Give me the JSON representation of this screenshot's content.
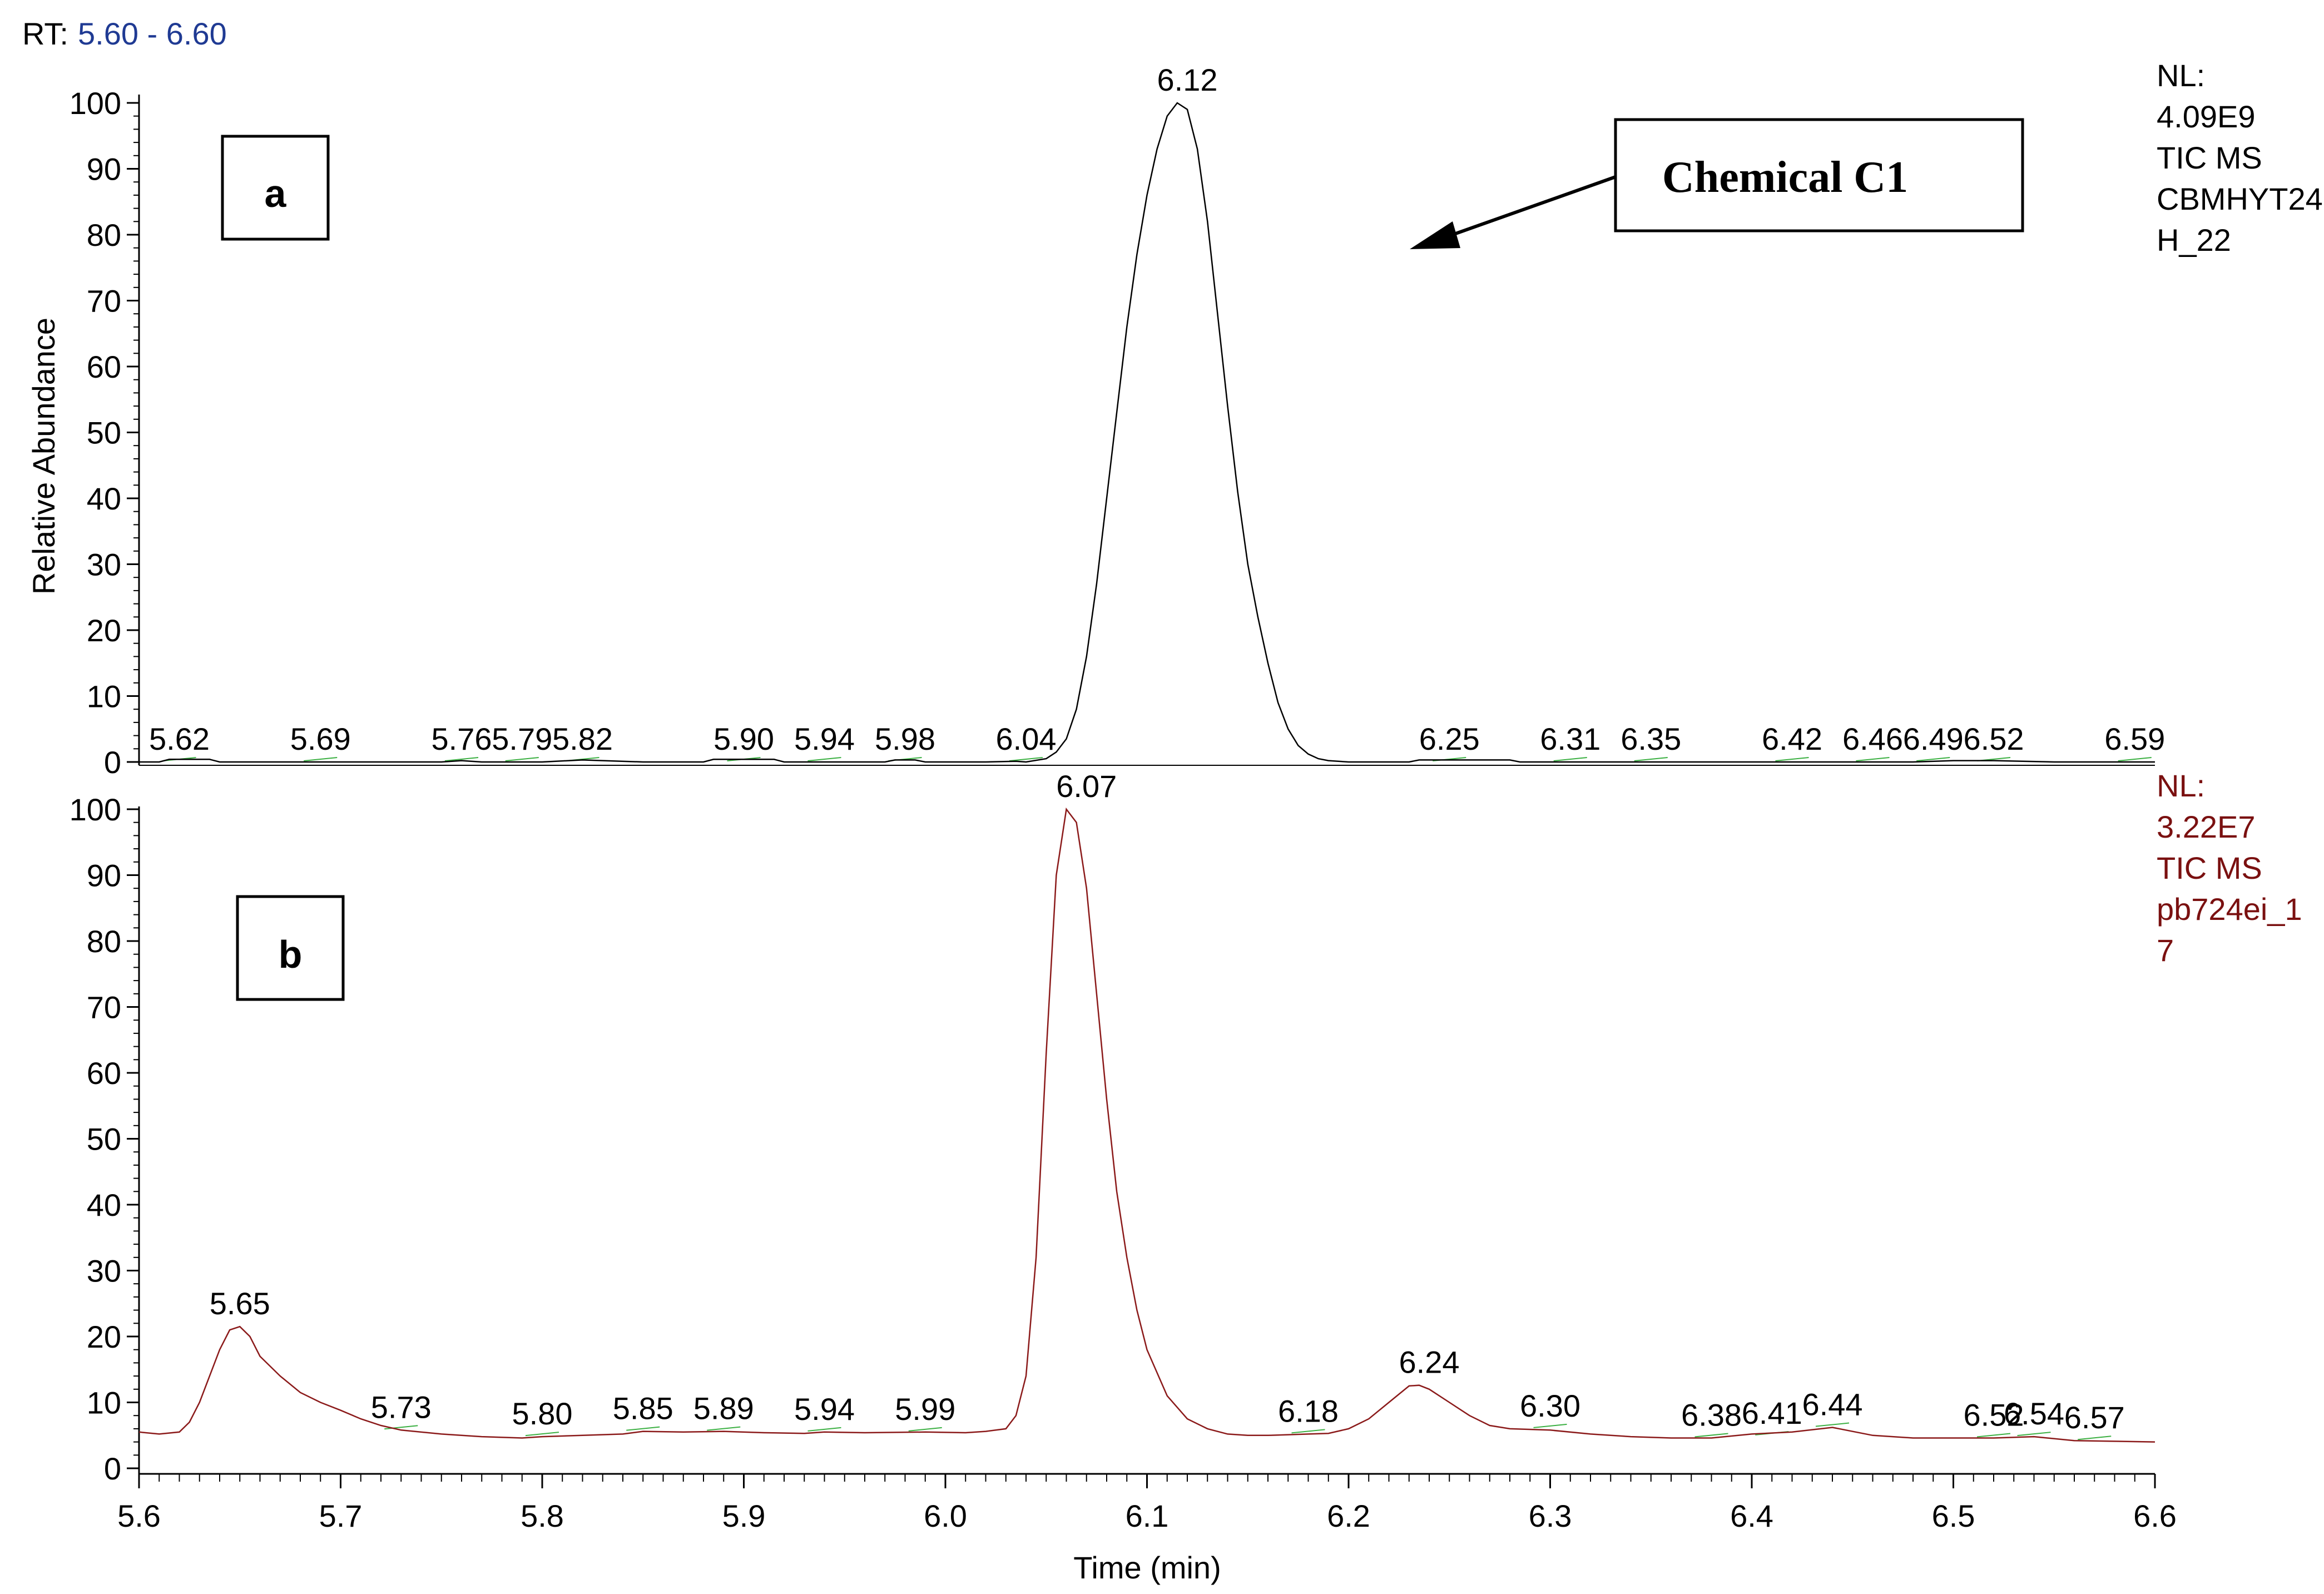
{
  "header": {
    "rt_label": "RT:",
    "rt_range": "5.60 - 6.60"
  },
  "annotation": {
    "label": "Chemical C1"
  },
  "colors": {
    "panel_a_trace": "#000000",
    "panel_b_trace": "#8b1a1a",
    "panel_b_info": "#7a1010",
    "rt_range": "#1f3a93",
    "minor_peak_marker": "#3cb043"
  },
  "chart_data": [
    {
      "type": "line",
      "panel_label": "a",
      "info_lines": [
        "NL:",
        "4.09E9",
        "TIC  MS",
        "CBMHYT24",
        "H_22"
      ],
      "xlabel": "",
      "ylabel": "Relative Abundance",
      "xlim": [
        5.6,
        6.6
      ],
      "ylim": [
        0,
        100
      ],
      "yticks": [
        0,
        10,
        20,
        30,
        40,
        50,
        60,
        70,
        80,
        90,
        100
      ],
      "series": [
        {
          "x": [
            5.6,
            5.61,
            5.615,
            5.625,
            5.635,
            5.64,
            5.66,
            5.7,
            5.75,
            5.76,
            5.77,
            5.8,
            5.82,
            5.83,
            5.85,
            5.88,
            5.885,
            5.915,
            5.92,
            5.95,
            5.97,
            5.975,
            5.985,
            5.99,
            6.02,
            6.035,
            6.04,
            6.05,
            6.055,
            6.06,
            6.065,
            6.07,
            6.075,
            6.08,
            6.085,
            6.09,
            6.095,
            6.1,
            6.105,
            6.11,
            6.115,
            6.12,
            6.125,
            6.13,
            6.135,
            6.14,
            6.145,
            6.15,
            6.155,
            6.16,
            6.165,
            6.17,
            6.175,
            6.18,
            6.185,
            6.19,
            6.2,
            6.23,
            6.235,
            6.28,
            6.285,
            6.3,
            6.35,
            6.4,
            6.45,
            6.48,
            6.5,
            6.52,
            6.55,
            6.6
          ],
          "y": [
            0,
            0,
            0.4,
            0.4,
            0.4,
            0,
            0,
            0,
            0,
            0.2,
            0,
            0,
            0.3,
            0.2,
            0,
            0,
            0.4,
            0.4,
            0,
            0,
            0,
            0.3,
            0.3,
            0,
            0,
            0.1,
            0,
            0.5,
            1.5,
            3.5,
            8,
            16,
            27,
            40,
            53,
            66,
            77,
            86,
            93,
            98,
            100,
            99,
            93,
            82,
            68,
            54,
            41,
            30,
            22,
            15,
            9,
            5,
            2.5,
            1.2,
            0.5,
            0.2,
            0,
            0,
            0.3,
            0.3,
            0,
            0,
            0,
            0,
            0,
            0,
            0.2,
            0.2,
            0,
            0
          ]
        }
      ],
      "peak_labels": [
        {
          "x": 5.62,
          "y": 0,
          "label": "5.62"
        },
        {
          "x": 5.69,
          "y": 0,
          "label": "5.69"
        },
        {
          "x": 5.76,
          "y": 0,
          "label": "5.76"
        },
        {
          "x": 5.79,
          "y": 0,
          "label": "5.79"
        },
        {
          "x": 5.82,
          "y": 0,
          "label": "5.82"
        },
        {
          "x": 5.9,
          "y": 0,
          "label": "5.90"
        },
        {
          "x": 5.94,
          "y": 0,
          "label": "5.94"
        },
        {
          "x": 5.98,
          "y": 0,
          "label": "5.98"
        },
        {
          "x": 6.04,
          "y": 0,
          "label": "6.04"
        },
        {
          "x": 6.12,
          "y": 100,
          "label": "6.12"
        },
        {
          "x": 6.25,
          "y": 0,
          "label": "6.25"
        },
        {
          "x": 6.31,
          "y": 0,
          "label": "6.31"
        },
        {
          "x": 6.35,
          "y": 0,
          "label": "6.35"
        },
        {
          "x": 6.42,
          "y": 0,
          "label": "6.42"
        },
        {
          "x": 6.46,
          "y": 0,
          "label": "6.46"
        },
        {
          "x": 6.49,
          "y": 0,
          "label": "6.49"
        },
        {
          "x": 6.52,
          "y": 0,
          "label": "6.52"
        },
        {
          "x": 6.59,
          "y": 0,
          "label": "6.59"
        }
      ]
    },
    {
      "type": "line",
      "panel_label": "b",
      "info_lines": [
        "NL:",
        "3.22E7",
        "TIC  MS",
        "pb724ei_1",
        "7"
      ],
      "xlabel": "Time (min)",
      "ylabel": "",
      "xlim": [
        5.6,
        6.6
      ],
      "ylim": [
        0,
        100
      ],
      "xticks": [
        5.6,
        5.7,
        5.8,
        5.9,
        6.0,
        6.1,
        6.2,
        6.3,
        6.4,
        6.5,
        6.6
      ],
      "yticks": [
        0,
        10,
        20,
        30,
        40,
        50,
        60,
        70,
        80,
        90,
        100
      ],
      "series": [
        {
          "x": [
            5.6,
            5.61,
            5.62,
            5.625,
            5.63,
            5.635,
            5.64,
            5.645,
            5.65,
            5.655,
            5.66,
            5.67,
            5.68,
            5.69,
            5.7,
            5.71,
            5.72,
            5.73,
            5.75,
            5.77,
            5.79,
            5.8,
            5.82,
            5.84,
            5.85,
            5.87,
            5.89,
            5.91,
            5.93,
            5.94,
            5.96,
            5.99,
            6.01,
            6.02,
            6.03,
            6.035,
            6.04,
            6.045,
            6.05,
            6.055,
            6.06,
            6.065,
            6.07,
            6.075,
            6.08,
            6.085,
            6.09,
            6.095,
            6.1,
            6.11,
            6.12,
            6.13,
            6.14,
            6.15,
            6.16,
            6.17,
            6.18,
            6.19,
            6.2,
            6.21,
            6.22,
            6.23,
            6.235,
            6.24,
            6.25,
            6.26,
            6.27,
            6.28,
            6.3,
            6.32,
            6.34,
            6.36,
            6.38,
            6.4,
            6.42,
            6.44,
            6.46,
            6.48,
            6.5,
            6.52,
            6.54,
            6.56,
            6.58,
            6.6
          ],
          "y": [
            5.5,
            5.2,
            5.5,
            7,
            10,
            14,
            18,
            21,
            21.5,
            20,
            17,
            14,
            11.5,
            10,
            8.8,
            7.5,
            6.5,
            5.8,
            5.2,
            4.8,
            4.6,
            4.8,
            5.0,
            5.2,
            5.6,
            5.5,
            5.6,
            5.4,
            5.3,
            5.5,
            5.4,
            5.5,
            5.4,
            5.6,
            6,
            8,
            14,
            32,
            63,
            90,
            100,
            98,
            88,
            72,
            56,
            42,
            32,
            24,
            18,
            11,
            7.5,
            6,
            5.2,
            5.0,
            5.0,
            5.1,
            5.2,
            5.3,
            6,
            7.5,
            10,
            12.5,
            12.6,
            12,
            10,
            8,
            6.5,
            6,
            5.8,
            5.2,
            4.8,
            4.6,
            4.6,
            5.2,
            5.5,
            6.2,
            5.0,
            4.6,
            4.6,
            4.6,
            4.8,
            4.2,
            4.1,
            4.0
          ]
        }
      ],
      "peak_labels": [
        {
          "x": 5.65,
          "y": 21.5,
          "label": "5.65"
        },
        {
          "x": 5.73,
          "y": 5.8,
          "label": "5.73"
        },
        {
          "x": 5.8,
          "y": 4.8,
          "label": "5.80"
        },
        {
          "x": 5.85,
          "y": 5.6,
          "label": "5.85"
        },
        {
          "x": 5.89,
          "y": 5.6,
          "label": "5.89"
        },
        {
          "x": 5.94,
          "y": 5.5,
          "label": "5.94"
        },
        {
          "x": 5.99,
          "y": 5.5,
          "label": "5.99"
        },
        {
          "x": 6.07,
          "y": 100,
          "label": "6.07"
        },
        {
          "x": 6.18,
          "y": 5.2,
          "label": "6.18"
        },
        {
          "x": 6.24,
          "y": 12.6,
          "label": "6.24"
        },
        {
          "x": 6.3,
          "y": 6,
          "label": "6.30"
        },
        {
          "x": 6.38,
          "y": 4.6,
          "label": "6.38"
        },
        {
          "x": 6.41,
          "y": 4.9,
          "label": "6.41"
        },
        {
          "x": 6.44,
          "y": 6.2,
          "label": "6.44"
        },
        {
          "x": 6.52,
          "y": 4.6,
          "label": "6.52"
        },
        {
          "x": 6.54,
          "y": 4.8,
          "label": "6.54"
        },
        {
          "x": 6.57,
          "y": 4.2,
          "label": "6.57"
        }
      ]
    }
  ]
}
